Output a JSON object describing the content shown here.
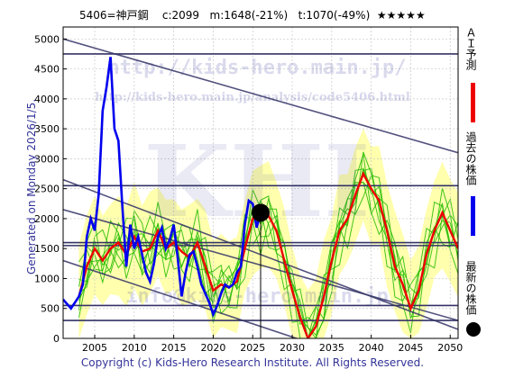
{
  "header": {
    "code": "5406=神戸鋼",
    "current": "c:2099",
    "mid": "m:1648(-21%)",
    "target": "t:1070(-49%)",
    "stars": "★★★★★"
  },
  "generated_text": "Generated on Monday 2026/1/5.",
  "copyright": "Copyright (c) Kids-Hero Research Institute. All Rights Reserved.",
  "watermarks": {
    "url_main": "http://kids-hero.main.jp/",
    "url_analysis": "http://kids-hero.main.jp/analysis/code5406.html",
    "big": "KHI",
    "email": "info@kids-hero.main.jp"
  },
  "legend": {
    "ai_forecast": "ＡＩ予測",
    "past_price": "過去の株価",
    "latest_price": "最新の株価"
  },
  "colors": {
    "ai": "#ee0000",
    "past": "#0000ee",
    "latest": "#000000",
    "band_fill": "#ffff99",
    "band_line": "#22bb00",
    "channel": "#333366",
    "hline": "#333366"
  },
  "chart_data": {
    "type": "line",
    "xlim": [
      2001,
      2051
    ],
    "ylim": [
      0,
      5200
    ],
    "xticks": [
      2005,
      2010,
      2015,
      2020,
      2025,
      2030,
      2035,
      2040,
      2045,
      2050
    ],
    "yticks": [
      0,
      500,
      1000,
      1500,
      2000,
      2500,
      3000,
      3500,
      4000,
      4500,
      5000
    ],
    "grid": true,
    "horizontal_levels": [
      300,
      550,
      1550,
      1600,
      2550,
      4750
    ],
    "channels": [
      {
        "x": [
          2001,
          2051
        ],
        "y": [
          5000,
          3100
        ]
      },
      {
        "x": [
          2001,
          2051
        ],
        "y": [
          2650,
          150
        ]
      },
      {
        "x": [
          2001,
          2051
        ],
        "y": [
          2150,
          300
        ]
      },
      {
        "x": [
          2001,
          2051
        ],
        "y": [
          1300,
          -900
        ]
      }
    ],
    "series": [
      {
        "name": "過去の株価",
        "x": [
          2001,
          2002,
          2003,
          2003.5,
          2004,
          2004.5,
          2005,
          2005.5,
          2006,
          2006.5,
          2007,
          2007.5,
          2008,
          2008.5,
          2009,
          2009.5,
          2010,
          2010.5,
          2011,
          2011.5,
          2012,
          2012.5,
          2013,
          2013.5,
          2014,
          2014.5,
          2015,
          2015.5,
          2016,
          2016.5,
          2017,
          2017.5,
          2018,
          2018.5,
          2019,
          2019.5,
          2020,
          2020.5,
          2021,
          2021.5,
          2022,
          2022.5,
          2023,
          2023.5,
          2024,
          2024.5,
          2025,
          2025.5,
          2026
        ],
        "y": [
          650,
          500,
          700,
          900,
          1700,
          2000,
          1800,
          2400,
          3800,
          4200,
          4700,
          3500,
          3300,
          2200,
          1200,
          1900,
          1500,
          1700,
          1400,
          1100,
          950,
          1250,
          1700,
          1850,
          1500,
          1650,
          1900,
          1350,
          700,
          1100,
          1400,
          1450,
          1200,
          900,
          750,
          600,
          400,
          550,
          750,
          900,
          850,
          900,
          1100,
          1200,
          1900,
          2300,
          2250,
          1850,
          2099
        ]
      },
      {
        "name": "ＡＩ予測",
        "x": [
          2003,
          2004,
          2005,
          2006,
          2007,
          2008,
          2009,
          2010,
          2011,
          2012,
          2013,
          2014,
          2015,
          2016,
          2017,
          2018,
          2019,
          2020,
          2021,
          2022,
          2023,
          2024,
          2025,
          2026,
          2027,
          2028,
          2029,
          2030,
          2031,
          2032,
          2033,
          2034,
          2035,
          2036,
          2037,
          2038,
          2039,
          2040,
          2041,
          2042,
          2043,
          2044,
          2045,
          2046,
          2047,
          2048,
          2049,
          2050,
          2051
        ],
        "y": [
          700,
          1200,
          1500,
          1300,
          1500,
          1600,
          1400,
          1700,
          1450,
          1500,
          1800,
          1500,
          1600,
          1450,
          1350,
          1600,
          1200,
          800,
          900,
          850,
          950,
          1500,
          2000,
          2000,
          2050,
          1800,
          1300,
          800,
          350,
          0,
          200,
          700,
          1300,
          1800,
          2000,
          2400,
          2750,
          2500,
          2300,
          1800,
          1200,
          900,
          500,
          800,
          1400,
          1800,
          2100,
          1800,
          1500
        ]
      },
      {
        "name": "最新の株価",
        "x": [
          2026
        ],
        "y": [
          2099
        ]
      }
    ]
  }
}
